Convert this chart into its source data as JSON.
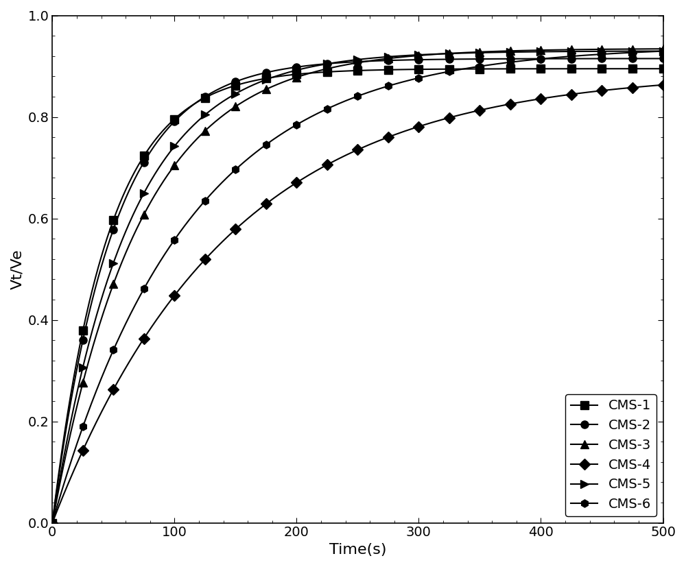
{
  "title": "",
  "xlabel": "Time(s)",
  "ylabel": "Vt/Ve",
  "xlim": [
    0,
    500
  ],
  "ylim": [
    0.0,
    1.0
  ],
  "xticks": [
    0,
    100,
    200,
    300,
    400,
    500
  ],
  "yticks": [
    0.0,
    0.2,
    0.4,
    0.6,
    0.8,
    1.0
  ],
  "series": [
    {
      "label": "CMS-1",
      "marker": "s",
      "linestyle": "-",
      "A": 0.895,
      "k": 0.022
    },
    {
      "label": "CMS-2",
      "marker": "o",
      "linestyle": "-",
      "A": 0.915,
      "k": 0.02
    },
    {
      "label": "CMS-3",
      "marker": "^",
      "linestyle": "-",
      "A": 0.935,
      "k": 0.014
    },
    {
      "label": "CMS-4",
      "marker": "D",
      "linestyle": "-",
      "A": 0.89,
      "k": 0.007
    },
    {
      "label": "CMS-5",
      "marker": ">",
      "linestyle": "-",
      "A": 0.93,
      "k": 0.016
    },
    {
      "label": "CMS-6",
      "marker": "h",
      "linestyle": "-",
      "A": 0.94,
      "k": 0.009
    }
  ],
  "background_color": "#ffffff",
  "line_color": "#000000",
  "fontsize_labels": 16,
  "fontsize_ticks": 14,
  "fontsize_legend": 14,
  "marker_size": 8,
  "linewidth": 1.5,
  "legend_loc": "lower right",
  "legend_frameon": true,
  "marker_interval": 25
}
